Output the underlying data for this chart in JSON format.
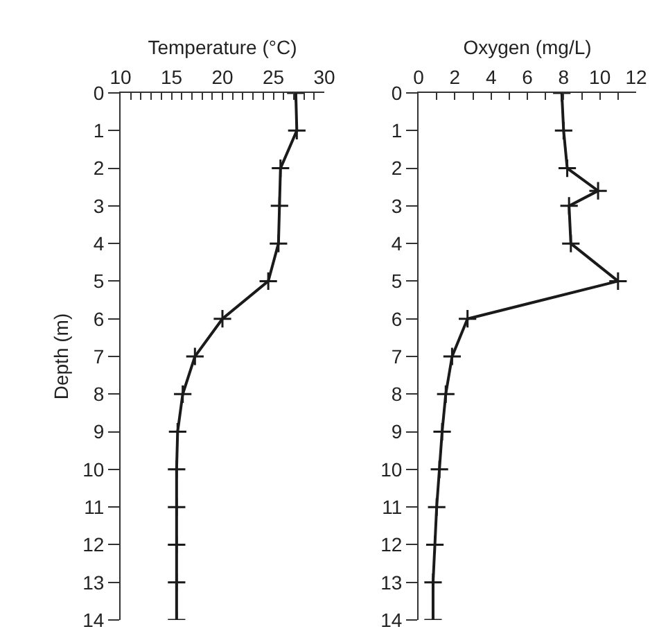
{
  "chart_data": [
    {
      "type": "line",
      "xlabel": "Temperature (°C)",
      "ylabel": "Depth (m)",
      "color": "#1a1a1a",
      "x": [
        27.2,
        27.3,
        25.7,
        25.6,
        25.5,
        24.5,
        20.0,
        17.3,
        16.1,
        15.6,
        15.5,
        15.5,
        15.5,
        15.5,
        15.5
      ],
      "values": [
        0,
        1,
        2,
        3,
        4,
        5,
        6,
        7,
        8,
        9,
        10,
        11,
        12,
        13,
        14
      ],
      "marker": "cross",
      "xlim": [
        10,
        30
      ],
      "ylim": [
        14,
        0
      ],
      "xticks": [
        10,
        {
          "value": 11,
          "label": null
        },
        {
          "value": 12,
          "label": null
        },
        {
          "value": 13,
          "label": null
        },
        {
          "value": 14,
          "label": null
        },
        15,
        {
          "value": 16,
          "label": null
        },
        {
          "value": 17,
          "label": null
        },
        {
          "value": 18,
          "label": null
        },
        {
          "value": 19,
          "label": null
        },
        20,
        {
          "value": 21,
          "label": null
        },
        {
          "value": 22,
          "label": null
        },
        {
          "value": 23,
          "label": null
        },
        {
          "value": 24,
          "label": null
        },
        25,
        {
          "value": 26,
          "label": null
        },
        {
          "value": 27,
          "label": null
        },
        {
          "value": 28,
          "label": null
        },
        {
          "value": 29,
          "label": null
        },
        30
      ],
      "yticks": [
        0,
        1,
        2,
        3,
        4,
        5,
        6,
        7,
        8,
        9,
        10,
        11,
        12,
        13,
        14
      ]
    },
    {
      "type": "line",
      "xlabel": "Oxygen (mg/L)",
      "color": "#1a1a1a",
      "x": [
        7.9,
        8.0,
        8.2,
        9.9,
        8.3,
        8.4,
        11.0,
        2.7,
        1.85,
        1.5,
        1.3,
        1.15,
        1.0,
        0.9,
        0.8,
        0.8
      ],
      "values": [
        0,
        1,
        2,
        2.6,
        3,
        4,
        5,
        6,
        7,
        8,
        9,
        10,
        11,
        12,
        13,
        14
      ],
      "marker": "cross",
      "xlim": [
        0,
        12
      ],
      "ylim": [
        14,
        0
      ],
      "xticks": [
        0,
        {
          "value": 1,
          "label": null
        },
        2,
        {
          "value": 3,
          "label": null
        },
        4,
        {
          "value": 5,
          "label": null
        },
        6,
        {
          "value": 7,
          "label": null
        },
        8,
        {
          "value": 9,
          "label": null
        },
        10,
        {
          "value": 11,
          "label": null
        },
        12
      ],
      "yticks": [
        0,
        1,
        2,
        3,
        4,
        5,
        6,
        7,
        8,
        9,
        10,
        11,
        12,
        13,
        14
      ]
    }
  ]
}
